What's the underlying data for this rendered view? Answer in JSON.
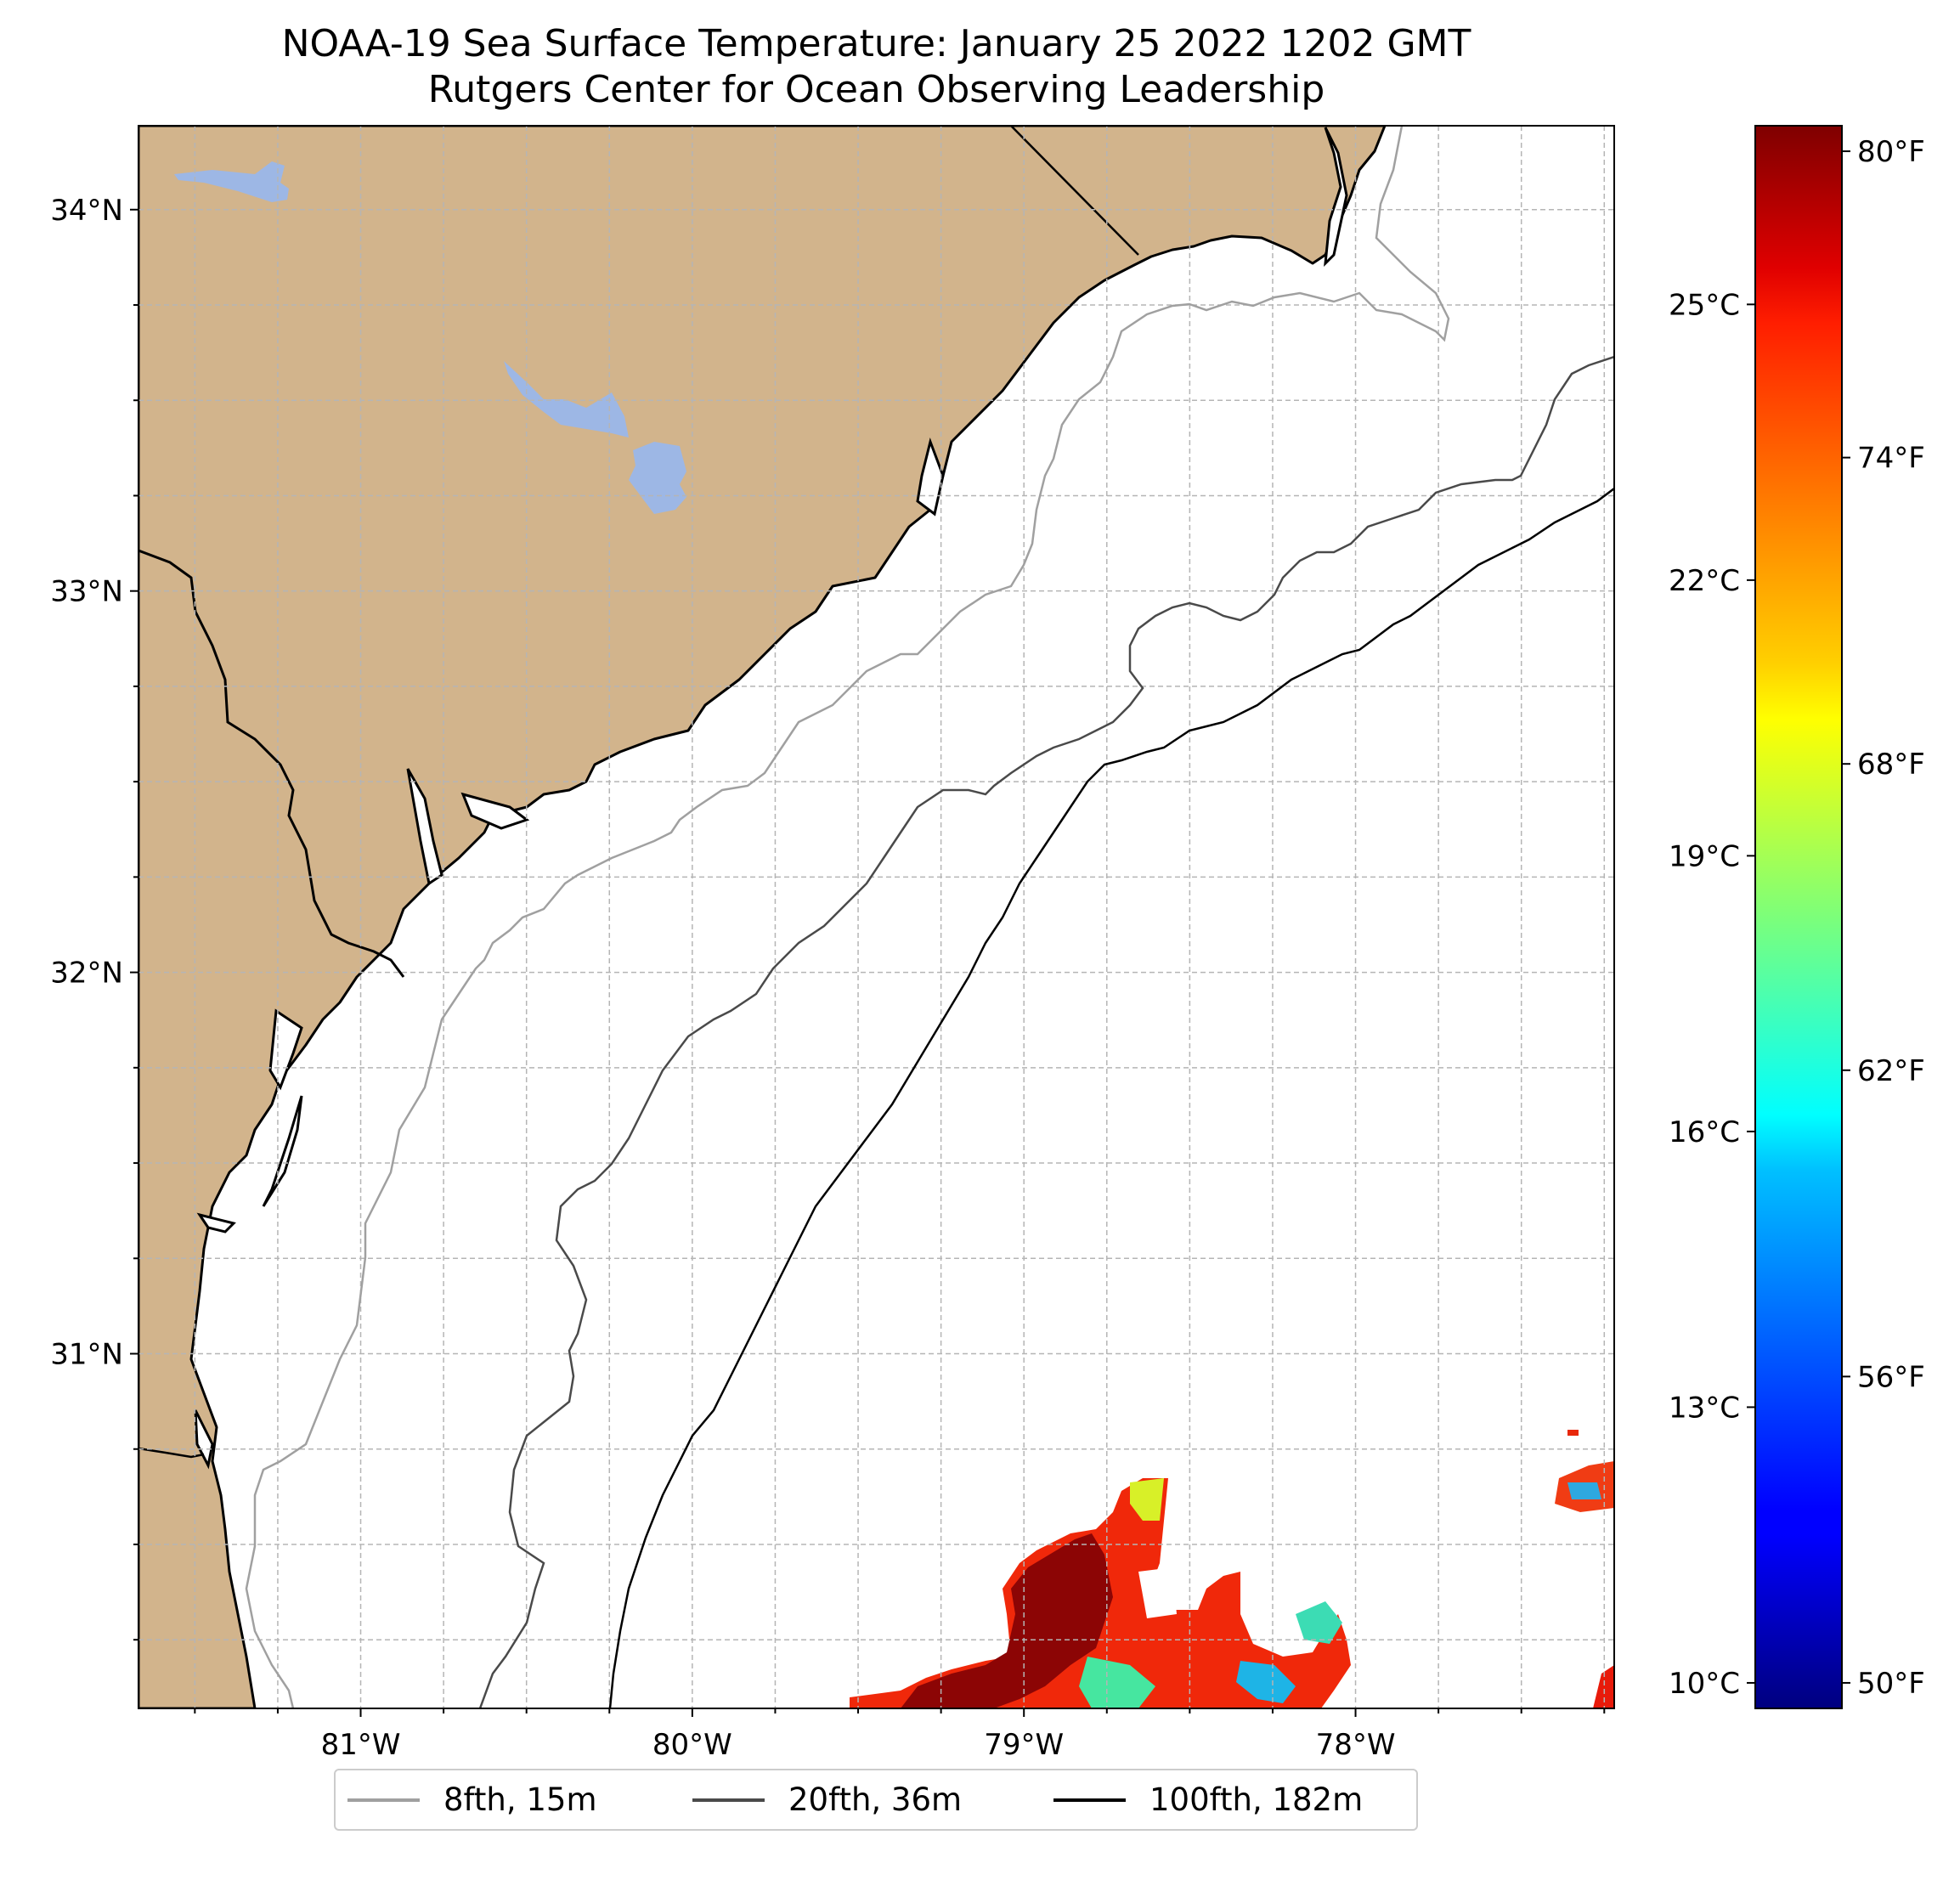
{
  "title": {
    "line1": "NOAA-19 Sea Surface Temperature: January 25 2022 1202 GMT",
    "line2": "Rutgers Center for Ocean Observing Leadership"
  },
  "map": {
    "lon_range": [
      -81.67,
      -77.22
    ],
    "lat_range": [
      30.07,
      34.22
    ],
    "land_color": "#d2b48c",
    "water_body_color": "#9db7e5",
    "grid": "on, dashed",
    "lon_ticks": [
      {
        "value": -81,
        "label": "81°W"
      },
      {
        "value": -80,
        "label": "80°W"
      },
      {
        "value": -79,
        "label": "79°W"
      },
      {
        "value": -78,
        "label": "78°W"
      }
    ],
    "lat_ticks": [
      {
        "value": 34,
        "label": "34°N"
      },
      {
        "value": 33,
        "label": "33°N"
      },
      {
        "value": 32,
        "label": "32°N"
      },
      {
        "value": 31,
        "label": "31°N"
      }
    ]
  },
  "colorbar": {
    "colormap": "jet",
    "celsius_ticks": [
      {
        "value": 25,
        "label": "25°C"
      },
      {
        "value": 22,
        "label": "22°C"
      },
      {
        "value": 19,
        "label": "19°C"
      },
      {
        "value": 16,
        "label": "16°C"
      },
      {
        "value": 13,
        "label": "13°C"
      },
      {
        "value": 10,
        "label": "10°C"
      }
    ],
    "fahrenheit_ticks": [
      {
        "value": 80,
        "label": "80°F"
      },
      {
        "value": 74,
        "label": "74°F"
      },
      {
        "value": 68,
        "label": "68°F"
      },
      {
        "value": 62,
        "label": "62°F"
      },
      {
        "value": 56,
        "label": "56°F"
      },
      {
        "value": 50,
        "label": "50°F"
      }
    ],
    "range_f": [
      49.5,
      80.5
    ]
  },
  "legend": {
    "items": [
      {
        "label": "8fth, 15m",
        "color": "#a0a0a0"
      },
      {
        "label": "20fth, 36m",
        "color": "#4a4a4a"
      },
      {
        "label": "100fth, 182m",
        "color": "#000000"
      }
    ]
  }
}
